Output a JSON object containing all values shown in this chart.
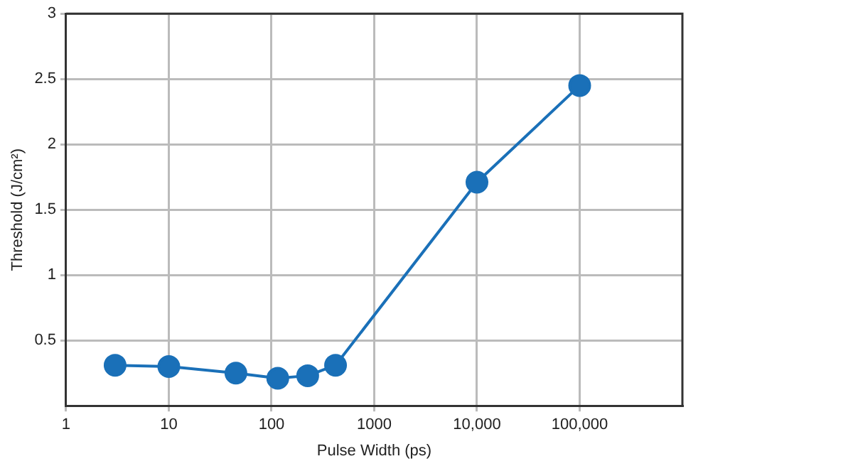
{
  "chart_data": {
    "type": "line",
    "xlabel": "Pulse Width (ps)",
    "ylabel": "Threshold (J/cm²)",
    "log": "x",
    "series": [
      {
        "color": "#1a70b8",
        "x": [
          3,
          10,
          45,
          115,
          225,
          420,
          10000,
          100000
        ],
        "values": [
          0.31,
          0.3,
          0.25,
          0.21,
          0.23,
          0.31,
          1.71,
          2.45
        ]
      }
    ],
    "xlim": [
      1,
      1000000
    ],
    "xticks": [
      1,
      10,
      100,
      1000,
      {
        "value": 10000,
        "label": "10,000"
      },
      {
        "value": 100000,
        "label": "100,000"
      }
    ],
    "ylim": [
      0,
      3
    ],
    "yticks": [
      0.5,
      1,
      1.5,
      2,
      2.5,
      3
    ],
    "grid": true,
    "marker": "circle",
    "line_style": "solid"
  }
}
